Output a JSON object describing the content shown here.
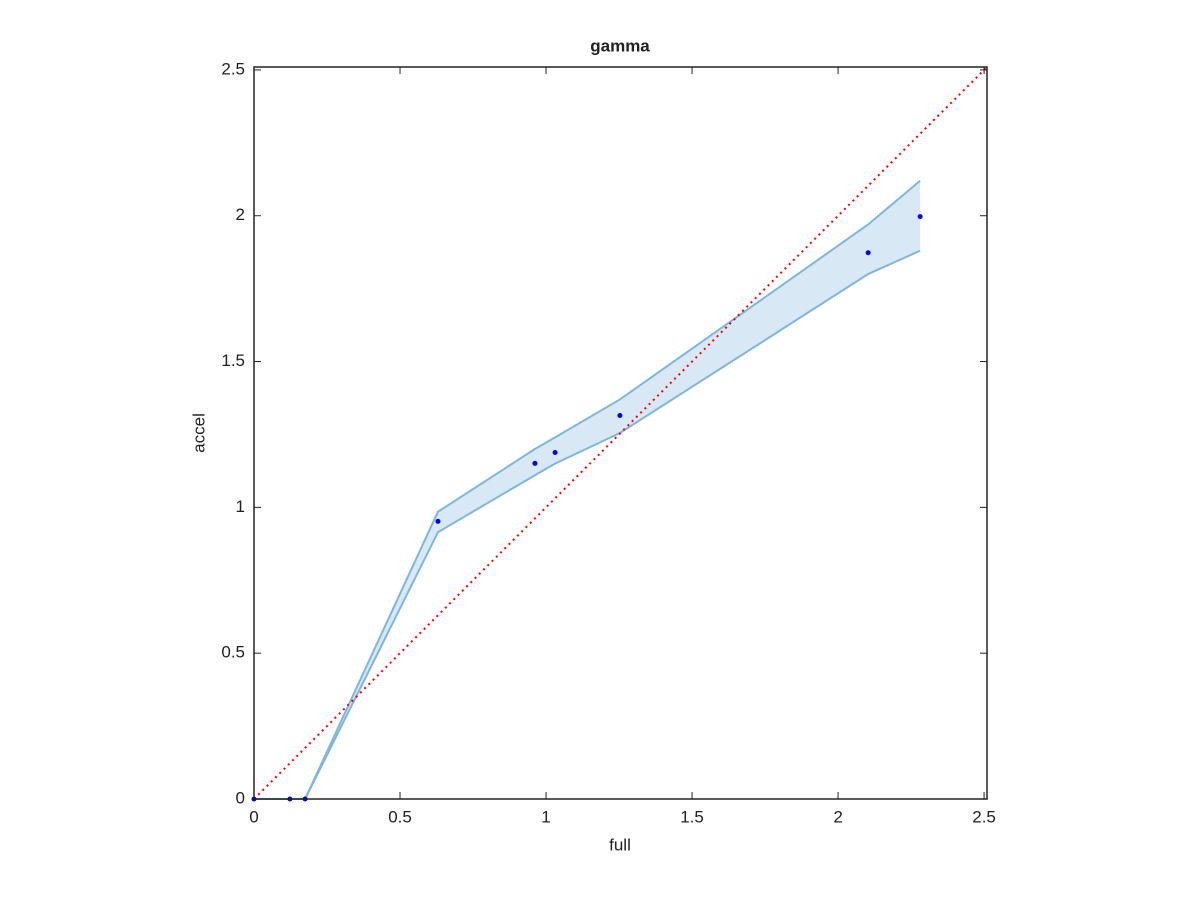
{
  "chart_data": {
    "type": "scatter",
    "title": "gamma",
    "x_label": "full",
    "y_label": "accel",
    "xlim": [
      0,
      2.51
    ],
    "ylim": [
      0,
      2.51
    ],
    "xticks": [
      0,
      0.5,
      1,
      1.5,
      2,
      2.5
    ],
    "yticks": [
      0,
      0.5,
      1,
      1.5,
      2,
      2.5
    ],
    "points": {
      "color": "#0000ff",
      "x": [
        0,
        0.123,
        0.175,
        0.63,
        0.962,
        1.031,
        1.253,
        2.103,
        2.281
      ],
      "y": [
        0,
        0,
        0,
        0.952,
        1.151,
        1.188,
        1.315,
        1.873,
        1.997
      ]
    },
    "band": {
      "color": "#7fb6dc",
      "fill": "#d9e8f5",
      "x": [
        0,
        0.123,
        0.175,
        0.63,
        0.962,
        1.031,
        1.253,
        2.103,
        2.281
      ],
      "upper": [
        0,
        0,
        0,
        0.985,
        1.2,
        1.24,
        1.37,
        1.97,
        2.12
      ],
      "lower": [
        0,
        0,
        0,
        0.915,
        1.11,
        1.15,
        1.255,
        1.8,
        1.88
      ]
    },
    "diagonal": {
      "color": "#ff0000",
      "x": [
        0,
        2.51
      ],
      "y": [
        0,
        2.51
      ]
    }
  }
}
